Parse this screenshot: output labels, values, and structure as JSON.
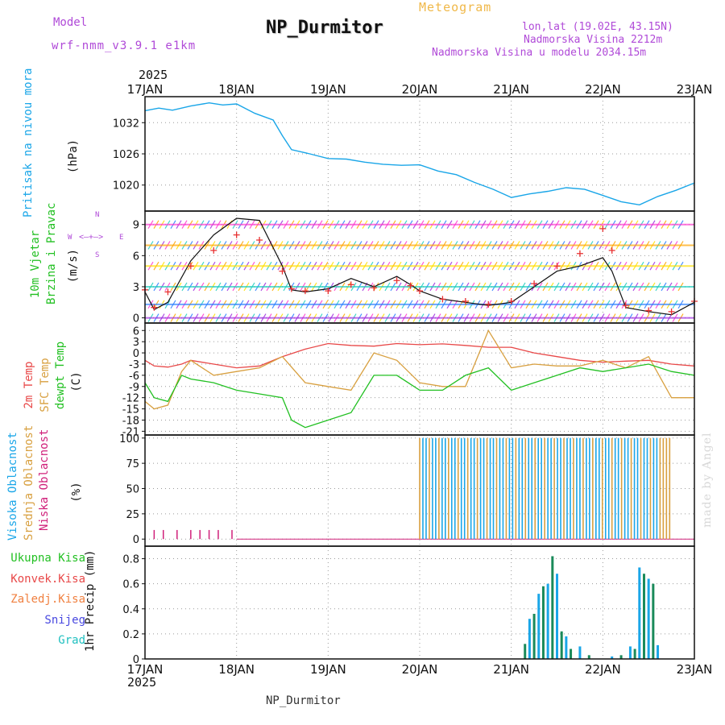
{
  "header": {
    "model_label": "Model",
    "model_name": "wrf-nmm_v3.9.1 e1km",
    "meteogram_label": "Meteogram",
    "station": "NP_Durmitor",
    "lonlat": "lon,lat (19.02E, 43.15N)",
    "altitude": "Nadmorska Visina 2212m",
    "model_altitude": "Nadmorska Visina u modelu 2034.15m"
  },
  "axis_labels": {
    "pressure": "Pritisak na nivou mora",
    "pressure_unit": "(hPa)",
    "wind_a": "10m Vjetar",
    "wind_b": "Brzina i Pravac",
    "wind_unit": "(m/s)",
    "compass_n": "N",
    "compass_w": "W",
    "compass_e": "E",
    "compass_s": "S",
    "temp_2m": "2m Temp",
    "temp_sfc": "SFC Temp",
    "temp_dew": "dewpt Temp",
    "temp_unit": "(C)",
    "cloud_high": "Visoka Oblacnost",
    "cloud_mid": "Srednja Oblacnost",
    "cloud_low": "Niska Oblacnost",
    "cloud_unit": "(%)",
    "precip": "1hr Precip (mm)"
  },
  "precip_legend": [
    "Ukupna Kisa",
    "Konvek.Kisa",
    "Zaledj.Kisa",
    "Snijeg",
    "Grad"
  ],
  "top_year": "2025",
  "bottom_year": "2025",
  "footer": "NP_Durmitor",
  "credit": "made by Angel",
  "colors": {
    "pressure": "#1aa6e8",
    "temp2m": "#e84848",
    "sfc": "#d8a040",
    "dewpt": "#22c022",
    "wind_speed": "#111111",
    "gust_marker": "#e83030",
    "cloud_high": "#1aa6e8",
    "cloud_mid": "#d8a040",
    "cloud_low": "#d0207a",
    "rain_total": "#22c022",
    "rain_conv": "#e84848",
    "rain_frz": "#f08040",
    "snow": "#4848e0",
    "hail": "#20c0c0",
    "precip_bar": "#1a8a5a",
    "label_purple": "#b04ad8"
  },
  "chart_data": [
    {
      "type": "line",
      "title": "",
      "ylabel": "Pritisak na nivou mora (hPa)",
      "x_tick_labels": [
        "17JAN",
        "18JAN",
        "19JAN",
        "20JAN",
        "21JAN",
        "22JAN",
        "23JAN"
      ],
      "yticks": [
        1020,
        1026,
        1032
      ],
      "ylim": [
        1015,
        1037
      ],
      "series": [
        {
          "name": "Pritisak na nivou mora",
          "x": [
            0,
            0.15,
            0.3,
            0.5,
            0.7,
            0.85,
            1.0,
            1.2,
            1.4,
            1.5,
            1.6,
            1.8,
            2.0,
            2.2,
            2.4,
            2.6,
            2.8,
            3.0,
            3.2,
            3.4,
            3.6,
            3.8,
            4.0,
            4.2,
            4.4,
            4.6,
            4.8,
            5.0,
            5.2,
            5.4,
            5.6,
            5.8,
            6.0
          ],
          "values": [
            1034.3,
            1034.8,
            1034.4,
            1035.2,
            1035.8,
            1035.4,
            1035.6,
            1033.8,
            1032.5,
            1029.5,
            1026.8,
            1026.0,
            1025.1,
            1025.0,
            1024.4,
            1024.0,
            1023.8,
            1023.9,
            1022.7,
            1022.0,
            1020.5,
            1019.2,
            1017.6,
            1018.3,
            1018.8,
            1019.5,
            1019.2,
            1018.0,
            1016.8,
            1016.2,
            1017.8,
            1019.0,
            1020.4
          ]
        }
      ]
    },
    {
      "type": "line",
      "title": "",
      "ylabel": "10m Vjetar Brzina i Pravac (m/s)",
      "yticks": [
        0,
        3,
        6,
        9
      ],
      "ylim": [
        -0.5,
        10.3
      ],
      "series": [
        {
          "name": "speed",
          "x": [
            0,
            0.1,
            0.25,
            0.5,
            0.75,
            1.0,
            1.25,
            1.5,
            1.6,
            1.75,
            2.0,
            2.25,
            2.5,
            2.75,
            2.9,
            3.0,
            3.25,
            3.5,
            3.75,
            4.0,
            4.25,
            4.5,
            4.75,
            5.0,
            5.1,
            5.25,
            5.5,
            5.75,
            6.0
          ],
          "values": [
            2.5,
            0.8,
            1.5,
            5.5,
            8.0,
            9.6,
            9.4,
            5.0,
            2.7,
            2.5,
            2.8,
            3.8,
            3.0,
            4.0,
            3.2,
            2.6,
            1.8,
            1.5,
            1.2,
            1.5,
            3.0,
            4.5,
            5.0,
            5.8,
            4.5,
            1.0,
            0.6,
            0.3,
            1.5
          ]
        },
        {
          "name": "gust",
          "x": [
            0,
            0.1,
            0.25,
            0.5,
            0.75,
            1.0,
            1.25,
            1.5,
            1.6,
            1.75,
            2.0,
            2.25,
            2.5,
            2.75,
            2.9,
            3.0,
            3.25,
            3.5,
            3.75,
            4.0,
            4.25,
            4.5,
            4.75,
            5.0,
            5.1,
            5.25,
            5.5,
            5.75,
            6.0
          ],
          "values": [
            2.7,
            1.0,
            2.5,
            5.0,
            6.5,
            8.0,
            7.5,
            4.5,
            2.8,
            2.6,
            2.6,
            3.2,
            2.9,
            3.6,
            3.1,
            2.6,
            1.8,
            1.6,
            1.3,
            1.6,
            3.3,
            5.0,
            6.2,
            8.6,
            6.5,
            1.2,
            0.7,
            0.6,
            1.6
          ]
        }
      ]
    },
    {
      "type": "line",
      "title": "",
      "ylabel": "2m Temp / SFC Temp / dewpt Temp (C)",
      "yticks": [
        6,
        3,
        0,
        -3,
        -6,
        -9,
        -12,
        -15,
        -18,
        -21
      ],
      "ylim": [
        -22,
        8
      ],
      "series": [
        {
          "name": "2m Temp",
          "x": [
            0,
            0.1,
            0.25,
            0.4,
            0.5,
            0.75,
            1.0,
            1.25,
            1.5,
            1.75,
            2.0,
            2.25,
            2.5,
            2.75,
            3.0,
            3.25,
            3.5,
            3.75,
            4.0,
            4.25,
            4.5,
            4.75,
            5.0,
            5.25,
            5.5,
            5.75,
            6.0
          ],
          "values": [
            -2,
            -3.5,
            -3.8,
            -3,
            -2,
            -3,
            -4,
            -3.5,
            -1,
            1,
            2.5,
            2,
            1.8,
            2.5,
            2.2,
            2.4,
            2,
            1.5,
            1.5,
            0,
            -1,
            -2,
            -2.5,
            -2.2,
            -2,
            -3,
            -3.5
          ]
        },
        {
          "name": "SFC Temp",
          "x": [
            0,
            0.1,
            0.25,
            0.4,
            0.5,
            0.75,
            1.0,
            1.25,
            1.5,
            1.75,
            2.0,
            2.25,
            2.5,
            2.75,
            3.0,
            3.25,
            3.5,
            3.75,
            4.0,
            4.25,
            4.5,
            4.75,
            5.0,
            5.25,
            5.5,
            5.75,
            6.0
          ],
          "values": [
            -13,
            -15,
            -14,
            -5,
            -2,
            -6,
            -5,
            -4,
            -1,
            -8,
            -9,
            -10,
            0,
            -2,
            -8,
            -9,
            -9,
            6,
            -4,
            -3,
            -3.5,
            -3.5,
            -2,
            -4,
            -1,
            -12,
            -12
          ]
        },
        {
          "name": "dewpt Temp",
          "x": [
            0,
            0.1,
            0.25,
            0.4,
            0.5,
            0.75,
            1.0,
            1.25,
            1.5,
            1.6,
            1.75,
            2.0,
            2.25,
            2.5,
            2.75,
            3.0,
            3.25,
            3.5,
            3.75,
            4.0,
            4.25,
            4.5,
            4.75,
            5.0,
            5.25,
            5.5,
            5.75,
            6.0
          ],
          "values": [
            -8,
            -12,
            -13,
            -6,
            -7,
            -8,
            -10,
            -11,
            -12,
            -18,
            -20,
            -18,
            -16,
            -6,
            -6,
            -10,
            -10,
            -6,
            -4,
            -10,
            -8,
            -6,
            -4,
            -5,
            -4,
            -3,
            -5,
            -6
          ]
        }
      ]
    },
    {
      "type": "bar",
      "title": "",
      "ylabel": "Visoka / Srednja / Niska Oblacnost (%)",
      "yticks": [
        0,
        25,
        50,
        75,
        100
      ],
      "ylim": [
        -7,
        103
      ],
      "series": [
        {
          "name": "Niska Oblacnost",
          "x": [
            0.1,
            0.2,
            0.35,
            0.5,
            0.6,
            0.7,
            0.8,
            0.95
          ],
          "values": [
            9,
            9,
            9,
            9,
            9,
            9,
            9,
            9
          ]
        },
        {
          "name": "Visoka Oblacnost",
          "x_range": [
            3.0,
            5.6
          ],
          "values_note_pct": 100
        },
        {
          "name": "Srednja Oblacnost",
          "x_range": [
            3.0,
            5.75
          ],
          "values_note_pct": 100
        }
      ]
    },
    {
      "type": "bar",
      "title": "",
      "ylabel": "1hr Precip (mm)",
      "yticks": [
        0,
        0.2,
        0.4,
        0.6,
        0.8
      ],
      "ylim": [
        0,
        0.9
      ],
      "series": [
        {
          "name": "Ukupna Kisa",
          "x": [
            4.15,
            4.2,
            4.25,
            4.3,
            4.35,
            4.4,
            4.45,
            4.5,
            4.55,
            4.6,
            4.65,
            4.75,
            4.85,
            5.1,
            5.2,
            5.3,
            5.35,
            5.4,
            5.45,
            5.5,
            5.55,
            5.6
          ],
          "values": [
            0.12,
            0.32,
            0.36,
            0.52,
            0.58,
            0.6,
            0.82,
            0.68,
            0.22,
            0.18,
            0.08,
            0.1,
            0.03,
            0.02,
            0.03,
            0.1,
            0.08,
            0.73,
            0.68,
            0.64,
            0.6,
            0.11
          ]
        }
      ]
    }
  ]
}
